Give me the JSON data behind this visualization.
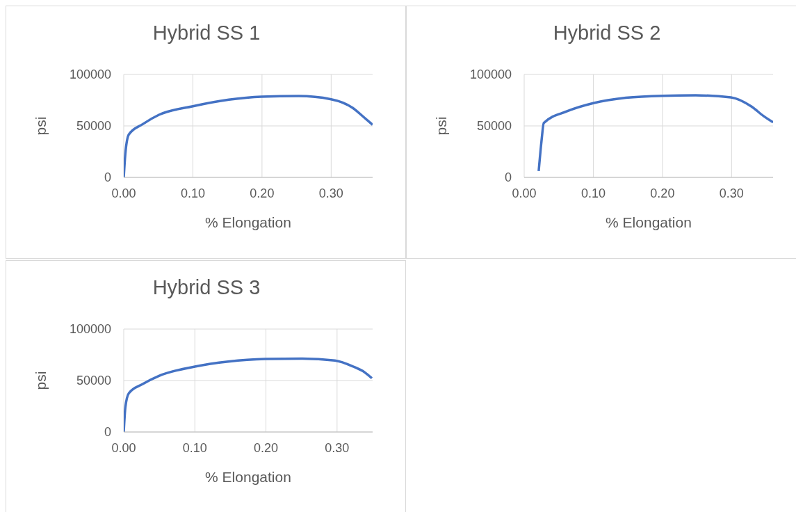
{
  "chart_data": [
    {
      "type": "line",
      "title": "Hybrid SS 1",
      "xlabel": "% Elongation",
      "ylabel": "psi",
      "x": [
        0,
        0.0024,
        0.0074,
        0.0276,
        0.051,
        0.1,
        0.152,
        0.199,
        0.253,
        0.3,
        0.331,
        0.347,
        0.36
      ],
      "series": [
        {
          "color": "#4472c4",
          "values": [
            0,
            23600,
            41700,
            51800,
            60800,
            69100,
            75500,
            78400,
            79000,
            75900,
            67600,
            58600,
            51100
          ]
        }
      ],
      "xlim": [
        0,
        0.36
      ],
      "ylim": [
        0,
        100000
      ],
      "xticks": [
        {
          "value": 0,
          "label": "0.00"
        },
        {
          "value": 0.1,
          "label": "0.10"
        },
        {
          "value": 0.2,
          "label": "0.20"
        },
        {
          "value": 0.3,
          "label": "0.30"
        }
      ],
      "yticks": [
        0,
        50000,
        100000
      ],
      "grid": true,
      "line_style": "solid",
      "marker": "none"
    },
    {
      "type": "line",
      "title": "Hybrid SS 2",
      "xlabel": "% Elongation",
      "ylabel": "psi",
      "x": [
        0.021,
        0.025,
        0.0284,
        0.062,
        0.1,
        0.147,
        0.2,
        0.248,
        0.299,
        0.329,
        0.346,
        0.36
      ],
      "series": [
        {
          "color": "#4472c4",
          "values": [
            6100,
            34900,
            52900,
            64200,
            72100,
            77300,
            79300,
            79700,
            77700,
            68700,
            59700,
            53500
          ]
        }
      ],
      "xlim": [
        0,
        0.36
      ],
      "ylim": [
        0,
        100000
      ],
      "xticks": [
        {
          "value": 0,
          "label": "0.00"
        },
        {
          "value": 0.1,
          "label": "0.10"
        },
        {
          "value": 0.2,
          "label": "0.20"
        },
        {
          "value": 0.3,
          "label": "0.30"
        }
      ],
      "yticks": [
        0,
        50000,
        100000
      ],
      "grid": true,
      "line_style": "solid",
      "marker": "none"
    },
    {
      "type": "line",
      "title": "Hybrid SS 3",
      "xlabel": "% Elongation",
      "ylabel": "psi",
      "x": [
        0,
        0.0023,
        0.0072,
        0.0267,
        0.0495,
        0.1,
        0.147,
        0.199,
        0.251,
        0.297,
        0.323,
        0.339,
        0.349
      ],
      "series": [
        {
          "color": "#4472c4",
          "values": [
            0,
            24200,
            37700,
            46600,
            54500,
            63500,
            68400,
            70900,
            71300,
            69500,
            63500,
            57900,
            52200
          ]
        }
      ],
      "xlim": [
        0,
        0.35
      ],
      "ylim": [
        0,
        100000
      ],
      "xticks": [
        {
          "value": 0,
          "label": "0.00"
        },
        {
          "value": 0.1,
          "label": "0.10"
        },
        {
          "value": 0.2,
          "label": "0.20"
        },
        {
          "value": 0.3,
          "label": "0.30"
        }
      ],
      "yticks": [
        0,
        50000,
        100000
      ],
      "grid": true,
      "line_style": "solid",
      "marker": "none"
    }
  ]
}
